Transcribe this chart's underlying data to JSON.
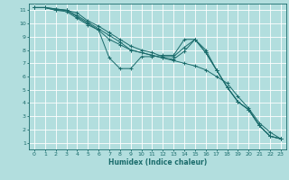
{
  "xlabel": "Humidex (Indice chaleur)",
  "bg_color": "#b2dede",
  "grid_color": "#ffffff",
  "line_color": "#1a6b6b",
  "xlim": [
    -0.5,
    23.5
  ],
  "ylim": [
    0.5,
    11.5
  ],
  "xticks": [
    0,
    1,
    2,
    3,
    4,
    5,
    6,
    7,
    8,
    9,
    10,
    11,
    12,
    13,
    14,
    15,
    16,
    17,
    18,
    19,
    20,
    21,
    22,
    23
  ],
  "yticks": [
    1,
    2,
    3,
    4,
    5,
    6,
    7,
    8,
    9,
    10,
    11
  ],
  "series": [
    {
      "x": [
        0,
        1,
        2,
        3,
        4,
        5,
        6,
        7,
        8,
        9,
        10,
        11,
        12,
        13,
        14,
        15,
        16,
        17,
        18,
        19,
        20,
        21,
        22,
        23
      ],
      "y": [
        11.2,
        11.2,
        11.0,
        11.0,
        10.5,
        10.0,
        9.5,
        8.8,
        8.4,
        8.0,
        7.8,
        7.6,
        7.4,
        7.2,
        7.0,
        6.8,
        6.5,
        6.0,
        5.5,
        4.5,
        3.6,
        2.5,
        1.8,
        1.3
      ]
    },
    {
      "x": [
        0,
        1,
        2,
        3,
        4,
        5,
        6,
        7,
        8,
        9,
        10,
        11,
        12,
        13,
        14,
        15,
        16,
        17,
        18,
        19,
        20,
        21,
        22,
        23
      ],
      "y": [
        11.2,
        11.2,
        11.0,
        10.9,
        10.4,
        9.9,
        9.5,
        7.4,
        6.6,
        6.6,
        7.5,
        7.5,
        7.6,
        7.6,
        8.8,
        8.8,
        7.8,
        6.5,
        5.2,
        4.1,
        3.5,
        2.3,
        1.5,
        1.3
      ]
    },
    {
      "x": [
        0,
        1,
        2,
        3,
        4,
        5,
        6,
        7,
        8,
        9,
        10,
        11,
        12,
        13,
        14,
        15,
        16,
        17,
        18,
        19,
        20,
        21,
        22,
        23
      ],
      "y": [
        11.2,
        11.2,
        11.1,
        11.0,
        10.8,
        10.2,
        9.8,
        9.3,
        8.8,
        8.3,
        8.0,
        7.8,
        7.5,
        7.5,
        8.2,
        8.8,
        7.8,
        6.5,
        5.2,
        4.1,
        3.5,
        2.3,
        1.5,
        1.3
      ]
    },
    {
      "x": [
        0,
        1,
        2,
        3,
        4,
        5,
        6,
        7,
        8,
        9,
        10,
        11,
        12,
        13,
        14,
        15,
        16,
        17,
        18,
        19,
        20,
        21,
        22,
        23
      ],
      "y": [
        11.2,
        11.2,
        11.1,
        11.0,
        10.6,
        10.1,
        9.6,
        9.1,
        8.6,
        8.0,
        7.8,
        7.6,
        7.4,
        7.3,
        7.9,
        8.8,
        8.0,
        6.5,
        5.2,
        4.1,
        3.5,
        2.3,
        1.5,
        1.3
      ]
    }
  ]
}
